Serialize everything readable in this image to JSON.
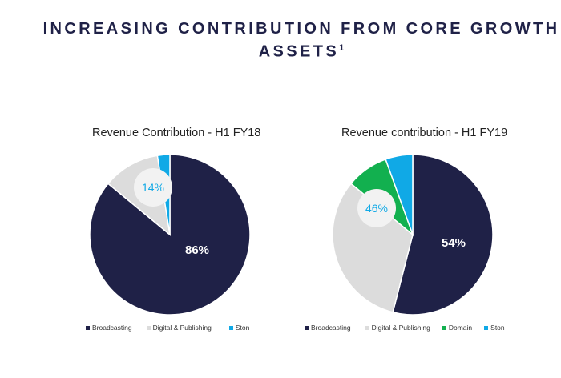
{
  "title": {
    "text": "INCREASING CONTRIBUTION FROM CORE GROWTH ASSETS",
    "footnote_mark": "1"
  },
  "colors": {
    "broadcasting": "#1f2147",
    "digital_publishing": "#dcdcdc",
    "domain": "#12b04f",
    "stan": "#10a9e6",
    "label_light": "#ffffff",
    "label_accent": "#10a9e6"
  },
  "chart_data": [
    {
      "type": "pie",
      "title": "Revenue Contribution - H1 FY18",
      "slices": [
        {
          "name": "Broadcasting",
          "value": 86,
          "color": "#1f2147"
        },
        {
          "name": "Digital & Publishing",
          "value": 11.5,
          "color": "#dcdcdc"
        },
        {
          "name": "Stan",
          "value": 2.5,
          "color": "#10a9e6"
        }
      ],
      "annotations": [
        {
          "text": "86%",
          "refers_to": "Broadcasting"
        },
        {
          "text": "14%",
          "refers_to": "Digital & Publishing + Stan"
        }
      ],
      "legend": [
        "Broadcasting",
        "Digital & Publishing",
        "Ston"
      ],
      "legend_position": "bottom"
    },
    {
      "type": "pie",
      "title": "Revenue contribution - H1 FY19",
      "slices": [
        {
          "name": "Broadcasting",
          "value": 54,
          "color": "#1f2147"
        },
        {
          "name": "Digital & Publishing",
          "value": 32,
          "color": "#dcdcdc"
        },
        {
          "name": "Domain",
          "value": 8.5,
          "color": "#12b04f"
        },
        {
          "name": "Stan",
          "value": 5.5,
          "color": "#10a9e6"
        }
      ],
      "annotations": [
        {
          "text": "54%",
          "refers_to": "Broadcasting"
        },
        {
          "text": "46%",
          "refers_to": "Digital & Publishing + Domain + Stan"
        }
      ],
      "legend": [
        "Broadcasting",
        "Digital & Publishing",
        "Domain",
        "Ston"
      ],
      "legend_position": "bottom"
    }
  ]
}
